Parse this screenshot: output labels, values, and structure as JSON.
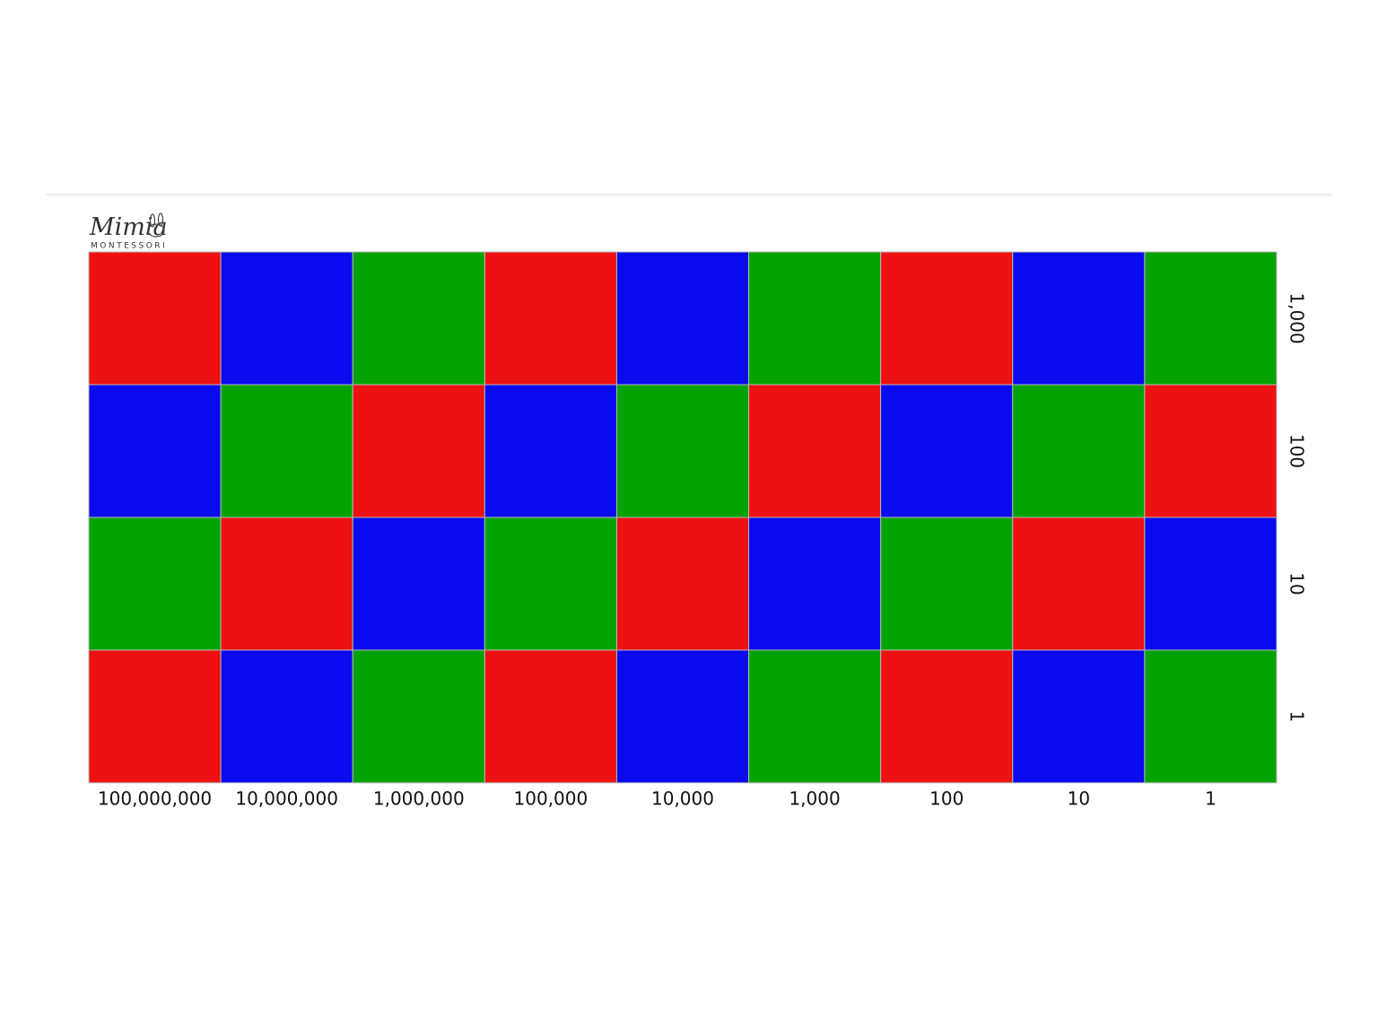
{
  "logo": {
    "name": "Mimia",
    "subtitle": "MONTESSORI"
  },
  "board": {
    "column_labels": [
      "100,000,000",
      "10,000,000",
      "1,000,000",
      "100,000",
      "10,000",
      "1,000",
      "100",
      "10",
      "1"
    ],
    "row_labels": [
      "1,000",
      "100",
      "10",
      "1"
    ],
    "cell_colors": [
      [
        "#ee1111",
        "#0a0aee",
        "#02a302",
        "#ee1111",
        "#0a0aee",
        "#02a302",
        "#ee1111",
        "#0a0aee",
        "#02a302"
      ],
      [
        "#0a0aee",
        "#02a302",
        "#ee1111",
        "#0a0aee",
        "#02a302",
        "#ee1111",
        "#0a0aee",
        "#02a302",
        "#ee1111"
      ],
      [
        "#02a302",
        "#ee1111",
        "#0a0aee",
        "#02a302",
        "#ee1111",
        "#0a0aee",
        "#02a302",
        "#ee1111",
        "#0a0aee"
      ],
      [
        "#ee1111",
        "#0a0aee",
        "#02a302",
        "#ee1111",
        "#0a0aee",
        "#02a302",
        "#ee1111",
        "#0a0aee",
        "#02a302"
      ]
    ]
  }
}
